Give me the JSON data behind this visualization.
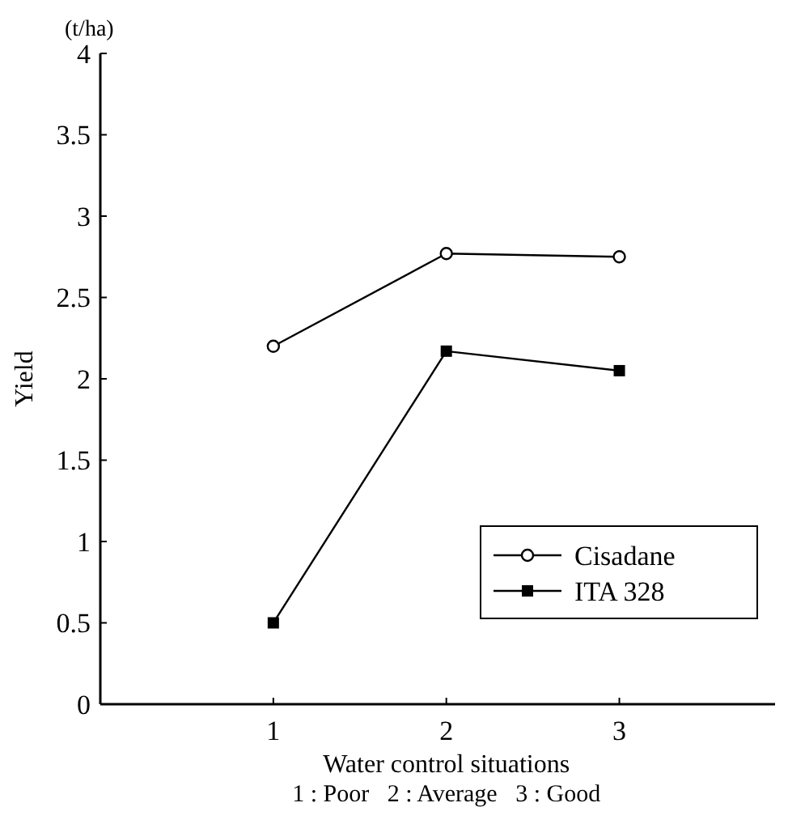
{
  "chart_data": {
    "type": "line",
    "xlabel": "Water control situations",
    "ylabel": "Yield",
    "annotations": [
      "(t/ha)",
      "1 : Poor   2 : Average   3 : Good"
    ],
    "x": [
      1,
      2,
      3
    ],
    "xlim": [
      0,
      3.9
    ],
    "xticks": [
      1,
      2,
      3
    ],
    "ylim": [
      0,
      4
    ],
    "yticks": [
      0,
      0.5,
      1,
      1.5,
      2,
      2.5,
      3,
      3.5,
      4
    ],
    "series": [
      {
        "name": "Cisadane",
        "color": "#000000",
        "marker": "circle",
        "values": [
          2.2,
          2.77,
          2.75
        ]
      },
      {
        "name": "ITA 328",
        "color": "#000000",
        "marker": "square",
        "values": [
          0.5,
          2.17,
          2.05
        ]
      }
    ],
    "grid": false,
    "legend": "bottom right",
    "line_style": "solid"
  }
}
